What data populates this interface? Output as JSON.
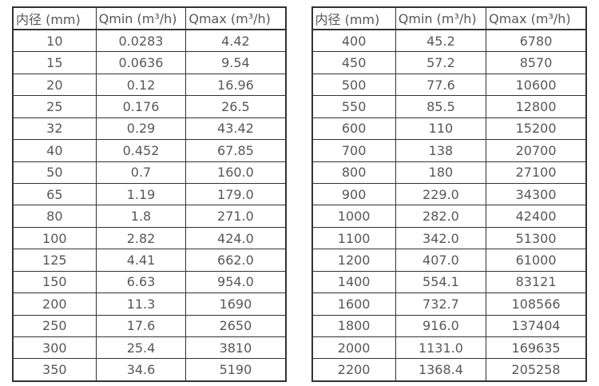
{
  "tables": [
    {
      "name": "diameter-flow-table-small",
      "headers": [
        "内径 (mm)",
        "Qmin (m³/h)",
        "Qmax (m³/h)"
      ],
      "rows": [
        [
          "10",
          "0.0283",
          "4.42"
        ],
        [
          "15",
          "0.0636",
          "9.54"
        ],
        [
          "20",
          "0.12",
          "16.96"
        ],
        [
          "25",
          "0.176",
          "26.5"
        ],
        [
          "32",
          "0.29",
          "43.42"
        ],
        [
          "40",
          "0.452",
          "67.85"
        ],
        [
          "50",
          "0.7",
          "160.0"
        ],
        [
          "65",
          "1.19",
          "179.0"
        ],
        [
          "80",
          "1.8",
          "271.0"
        ],
        [
          "100",
          "2.82",
          "424.0"
        ],
        [
          "125",
          "4.41",
          "662.0"
        ],
        [
          "150",
          "6.63",
          "954.0"
        ],
        [
          "200",
          "11.3",
          "1690"
        ],
        [
          "250",
          "17.6",
          "2650"
        ],
        [
          "300",
          "25.4",
          "3810"
        ],
        [
          "350",
          "34.6",
          "5190"
        ]
      ]
    },
    {
      "name": "diameter-flow-table-large",
      "headers": [
        "内径 (mm)",
        "Qmin (m³/h)",
        "Qmax (m³/h)"
      ],
      "rows": [
        [
          "400",
          "45.2",
          "6780"
        ],
        [
          "450",
          "57.2",
          "8570"
        ],
        [
          "500",
          "77.6",
          "10600"
        ],
        [
          "550",
          "85.5",
          "12800"
        ],
        [
          "600",
          "110",
          "15200"
        ],
        [
          "700",
          "138",
          "20700"
        ],
        [
          "800",
          "180",
          "27100"
        ],
        [
          "900",
          "229.0",
          "34300"
        ],
        [
          "1000",
          "282.0",
          "42400"
        ],
        [
          "1100",
          "342.0",
          "51300"
        ],
        [
          "1200",
          "407.0",
          "61000"
        ],
        [
          "1400",
          "554.1",
          "83121"
        ],
        [
          "1600",
          "732.7",
          "108566"
        ],
        [
          "1800",
          "916.0",
          "137404"
        ],
        [
          "2000",
          "1131.0",
          "169635"
        ],
        [
          "2200",
          "1368.4",
          "205258"
        ]
      ]
    }
  ],
  "colors": {
    "border": "#333333",
    "text": "#58585a",
    "background": "#ffffff"
  }
}
